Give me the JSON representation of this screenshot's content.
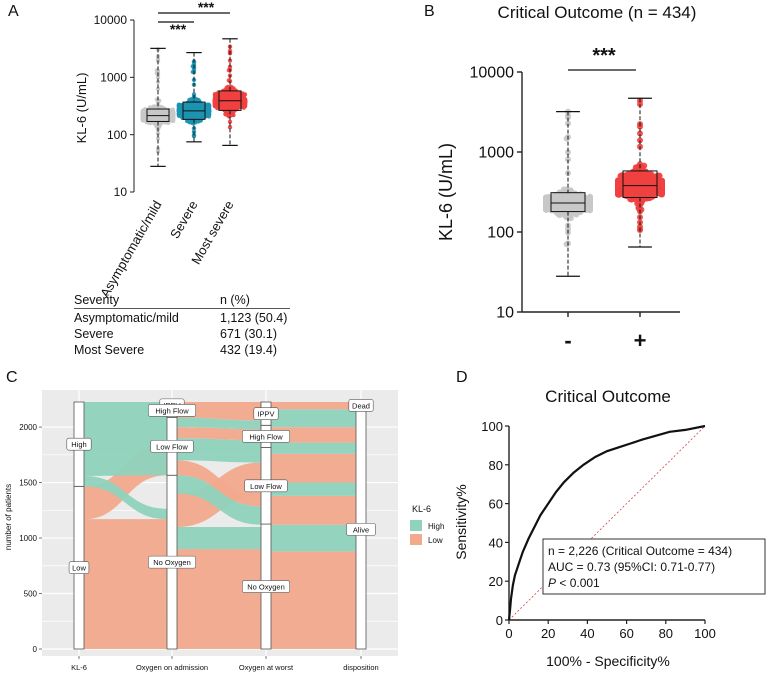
{
  "panel_labels": [
    "A",
    "B",
    "C",
    "D"
  ],
  "table": {
    "headers": [
      "Severity",
      "n (%)"
    ],
    "rows": [
      {
        "label": "Asymptomatic/mild",
        "value": "1,123 (50.4)"
      },
      {
        "label": "Severe",
        "value": "671 (30.1)"
      },
      {
        "label": "Most Severe",
        "value": "432 (19.4)"
      }
    ]
  },
  "colors": {
    "grey": "#c8c8c8",
    "teal": "#1d94b0",
    "red": "#f04040",
    "high": "#8fd3bd",
    "low": "#f2a98d",
    "panel_bg": "#ebebeb"
  },
  "chart_data": [
    {
      "id": "A",
      "type": "box",
      "ylabel": "KL-6 (U/mL)",
      "yscale": "log",
      "yticks": [
        10,
        100,
        1000,
        10000
      ],
      "ytick_labels": [
        "10",
        "100",
        "1000",
        "10000"
      ],
      "ylim": [
        10,
        10000
      ],
      "significance": [
        "***",
        "***"
      ],
      "groups": [
        {
          "name": "Asymptomatic/mild",
          "min": 28,
          "q1": 170,
          "median": 215,
          "q3": 280,
          "max": 3200,
          "color": "grey"
        },
        {
          "name": "Severe",
          "min": 75,
          "q1": 185,
          "median": 260,
          "q3": 370,
          "max": 2700,
          "color": "teal"
        },
        {
          "name": "Most severe",
          "min": 65,
          "q1": 265,
          "median": 390,
          "q3": 580,
          "max": 4700,
          "color": "red"
        }
      ]
    },
    {
      "id": "B",
      "type": "box",
      "title": "Critical Outcome (n = 434)",
      "ylabel": "KL-6 (U/mL)",
      "yscale": "log",
      "yticks": [
        10,
        100,
        1000,
        10000
      ],
      "ytick_labels": [
        "10",
        "100",
        "1000",
        "10000"
      ],
      "ylim": [
        10,
        10000
      ],
      "significance": "***",
      "groups": [
        {
          "name": "-",
          "min": 28,
          "q1": 180,
          "median": 230,
          "q3": 310,
          "max": 3200,
          "color": "grey"
        },
        {
          "name": "+",
          "min": 65,
          "q1": 270,
          "median": 380,
          "q3": 580,
          "max": 4700,
          "color": "red"
        }
      ]
    },
    {
      "id": "C",
      "type": "alluvial",
      "ylabel": "number of patients",
      "yticks": [
        0,
        500,
        1000,
        1500,
        2000
      ],
      "ylim": [
        0,
        2226
      ],
      "legend": {
        "title": "KL-6",
        "entries": [
          {
            "name": "High",
            "color": "high"
          },
          {
            "name": "Low",
            "color": "low"
          }
        ]
      },
      "axes": [
        {
          "name": "KL-6",
          "strata": [
            {
              "label": "High",
              "count": 760
            },
            {
              "label": "Low",
              "count": 1466
            }
          ]
        },
        {
          "name": "Oxygen on admission",
          "strata": [
            {
              "label": "IPPV",
              "count": 40
            },
            {
              "label": "High Flow",
              "count": 100
            },
            {
              "label": "Low Flow",
              "count": 520
            },
            {
              "label": "No Oxygen",
              "count": 1566
            }
          ]
        },
        {
          "name": "Oxygen at worst",
          "strata": [
            {
              "label": "IPPV",
              "count": 210
            },
            {
              "label": "High Flow",
              "count": 200
            },
            {
              "label": "Low Flow",
              "count": 690
            },
            {
              "label": "No Oxygen",
              "count": 1126
            }
          ]
        },
        {
          "name": "disposition",
          "strata": [
            {
              "label": "Dead",
              "count": 70
            },
            {
              "label": "Alive",
              "count": 2156
            }
          ]
        }
      ]
    },
    {
      "id": "D",
      "type": "line",
      "title": "Critical Outcome",
      "xlabel": "100% - Specificity%",
      "ylabel": "Sensitivity%",
      "xlim": [
        0,
        100
      ],
      "ylim": [
        0,
        100
      ],
      "xticks": [
        0,
        20,
        40,
        60,
        80,
        100
      ],
      "yticks": [
        0,
        20,
        40,
        60,
        80,
        100
      ],
      "roc_x": [
        0,
        0.5,
        1,
        2,
        3,
        5,
        7,
        10,
        13,
        16,
        20,
        24,
        28,
        33,
        38,
        44,
        50,
        56,
        62,
        68,
        75,
        82,
        90,
        100
      ],
      "roc_y": [
        0,
        5,
        11,
        18,
        23,
        29,
        35,
        42,
        48,
        54,
        60,
        66,
        71,
        76,
        80,
        84,
        87,
        89,
        91,
        93,
        95,
        97,
        98,
        100
      ],
      "annotation": {
        "line1": "n = 2,226 (Critical Outcome = 434)",
        "line2": "AUC = 0.73 (95%CI: 0.71-0.77)",
        "line3_italic": "P",
        "line3_rest": " < 0.001"
      }
    }
  ]
}
